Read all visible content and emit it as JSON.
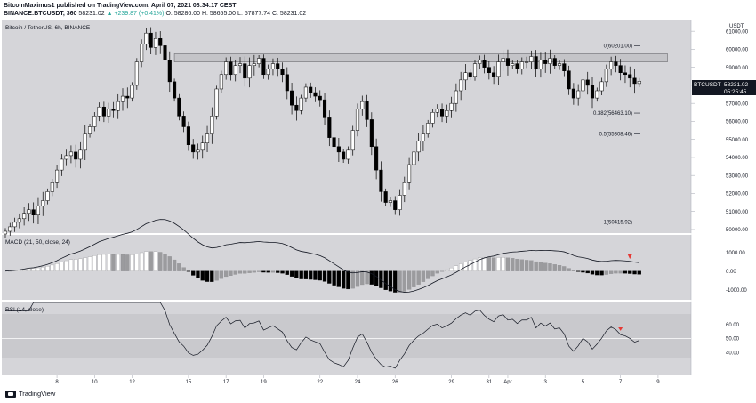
{
  "header": {
    "line1": "BitcoinMaximus1 published on TradingView.com, April 07, 2021 08:34:17 CEST",
    "symbol": "BINANCE:BTCUSDT, 360",
    "price": "58231.02",
    "change": "▲ +239.87 (+0.41%)",
    "ohlc_o": "O: 58286.00",
    "ohlc_h": "H: 58655.00",
    "ohlc_l": "L: 57877.74",
    "ohlc_c": "C: 58231.02"
  },
  "pane_labels": {
    "main": "Bitcoin / TetherUS, 6h, BINANCE",
    "macd": "MACD (21, 50, close, 24)",
    "rsi": "RSI (14, close)",
    "currency": "USDT"
  },
  "price_tag": {
    "symbol": "BTCUSDT",
    "price": "58231.02",
    "countdown": "05:25:45"
  },
  "footer": {
    "brand": "TradingView"
  },
  "colors": {
    "background": "#d5d5d9",
    "candle": "#000000",
    "candle_up": "#ffffff",
    "hist_up": "#ffffff",
    "hist_mid": "#9b9b9e",
    "hist_down": "#000000",
    "line": "#131722",
    "marker": "#e53935"
  },
  "chart_data": {
    "type": "candlestick",
    "timeframe": "6h",
    "x_ticks": [
      {
        "label": "8",
        "bar": 11
      },
      {
        "label": "10",
        "bar": 19
      },
      {
        "label": "12",
        "bar": 27
      },
      {
        "label": "15",
        "bar": 39
      },
      {
        "label": "17",
        "bar": 47
      },
      {
        "label": "19",
        "bar": 55
      },
      {
        "label": "22",
        "bar": 67
      },
      {
        "label": "24",
        "bar": 75
      },
      {
        "label": "26",
        "bar": 83
      },
      {
        "label": "29",
        "bar": 95
      },
      {
        "label": "31",
        "bar": 103
      },
      {
        "label": "Apr",
        "bar": 107
      },
      {
        "label": "3",
        "bar": 115
      },
      {
        "label": "5",
        "bar": 123
      },
      {
        "label": "7",
        "bar": 131
      },
      {
        "label": "9",
        "bar": 139
      }
    ],
    "y_ticks": [
      "61000.00",
      "60000.00",
      "59000.00",
      "58000.00",
      "57000.00",
      "56000.00",
      "55000.00",
      "54000.00",
      "53000.00",
      "52000.00",
      "51000.00",
      "50000.00"
    ],
    "ylim": [
      49800,
      61650
    ],
    "closes": [
      49900,
      50150,
      50400,
      50600,
      50900,
      51100,
      50800,
      51300,
      51600,
      52100,
      52600,
      53300,
      53900,
      54100,
      54300,
      53900,
      54400,
      55300,
      55700,
      56300,
      56800,
      56300,
      56700,
      56600,
      57100,
      57400,
      57300,
      58000,
      59300,
      60300,
      60900,
      60100,
      60600,
      60200,
      59400,
      58200,
      57300,
      56300,
      55700,
      54700,
      54300,
      54400,
      54800,
      55300,
      56300,
      57800,
      58600,
      59300,
      58600,
      59100,
      59200,
      58400,
      59100,
      59200,
      59500,
      58600,
      58900,
      59200,
      58900,
      58600,
      57700,
      56900,
      56600,
      57300,
      57900,
      57600,
      57400,
      57200,
      56200,
      55100,
      54600,
      54300,
      53900,
      54400,
      55500,
      56700,
      57100,
      56100,
      54600,
      53300,
      52100,
      51500,
      51600,
      51100,
      51900,
      52600,
      53600,
      54300,
      54900,
      55300,
      55900,
      56500,
      56700,
      56300,
      56600,
      57000,
      57700,
      58300,
      58700,
      58500,
      59200,
      59400,
      59000,
      58700,
      58500,
      59300,
      59500,
      59100,
      59200,
      58900,
      59300,
      59300,
      59600,
      58900,
      59400,
      59200,
      59500,
      59100,
      59200,
      58800,
      57800,
      57300,
      57700,
      58300,
      58000,
      57300,
      57700,
      58200,
      58900,
      59300,
      59100,
      58700,
      58600,
      58400,
      58100,
      58231.02
    ],
    "fib_levels": [
      {
        "label": "0(60201.00)",
        "value": 60201
      },
      {
        "label": "0.382(56463.10)",
        "value": 56463.1
      },
      {
        "label": "0.5(55308.46)",
        "value": 55308.46
      },
      {
        "label": "1(50415.92)",
        "value": 50415.92
      }
    ],
    "resistance_zone": {
      "from_bar": 36,
      "to_bar": 141,
      "low": 59300,
      "high": 59750
    },
    "macd": {
      "y_ticks": [
        "1000.00",
        "0.00",
        "-1000.00"
      ],
      "ylim": [
        -1500,
        1900
      ]
    },
    "rsi": {
      "y_ticks": [
        "60.00",
        "50.00",
        "40.00"
      ],
      "ylim": [
        24,
        76
      ],
      "band": [
        30,
        70
      ]
    }
  }
}
